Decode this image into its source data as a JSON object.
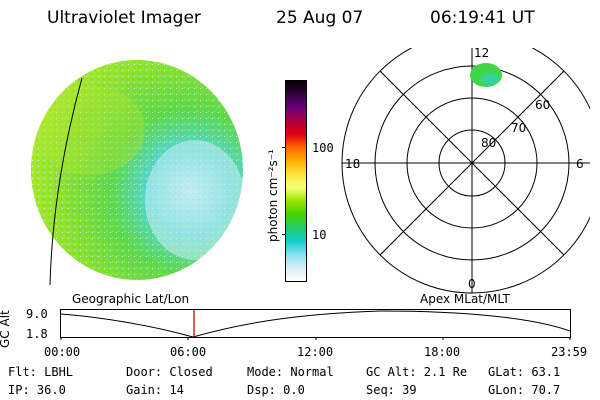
{
  "header": {
    "instrument": "Ultraviolet Imager",
    "date": "25 Aug 07",
    "time": "06:19:41 UT"
  },
  "colorbar": {
    "label": "photon cm⁻²s⁻¹",
    "ticks": [
      "100",
      "10"
    ],
    "colors": [
      "#000000",
      "#33003b",
      "#6b007e",
      "#aa0040",
      "#e00010",
      "#ff6a00",
      "#ffae00",
      "#ffe640",
      "#f4ff7a",
      "#9ae600",
      "#44d000",
      "#22cc66",
      "#11cccc",
      "#88e0f0",
      "#d8eef4",
      "#ffffff"
    ]
  },
  "polar_plot": {
    "lat_labels": [
      "80",
      "70",
      "60"
    ],
    "mlt_labels": {
      "top": "12",
      "left": "18",
      "right": "6",
      "bottom": "0"
    }
  },
  "timeline": {
    "y_axis_label": "GC Alt",
    "y_ticks": [
      "9.0",
      "1.8"
    ],
    "left_label": "Geographic Lat/Lon",
    "right_label": "Apex MLat/MLT",
    "x_ticks": [
      "00:00",
      "06:00",
      "12:00",
      "18:00",
      "23:59"
    ]
  },
  "info": {
    "flt": "Flt: LBHL",
    "ip": "IP: 36.0",
    "door": "Door: Closed",
    "gain": "Gain: 14",
    "mode": "Mode: Normal",
    "dsp": "Dsp:    0.0",
    "gcalt": "GC Alt: 2.1 Re",
    "seq": "Seq: 39",
    "glat": "GLat:  63.1",
    "glon": "GLon:  70.7"
  }
}
